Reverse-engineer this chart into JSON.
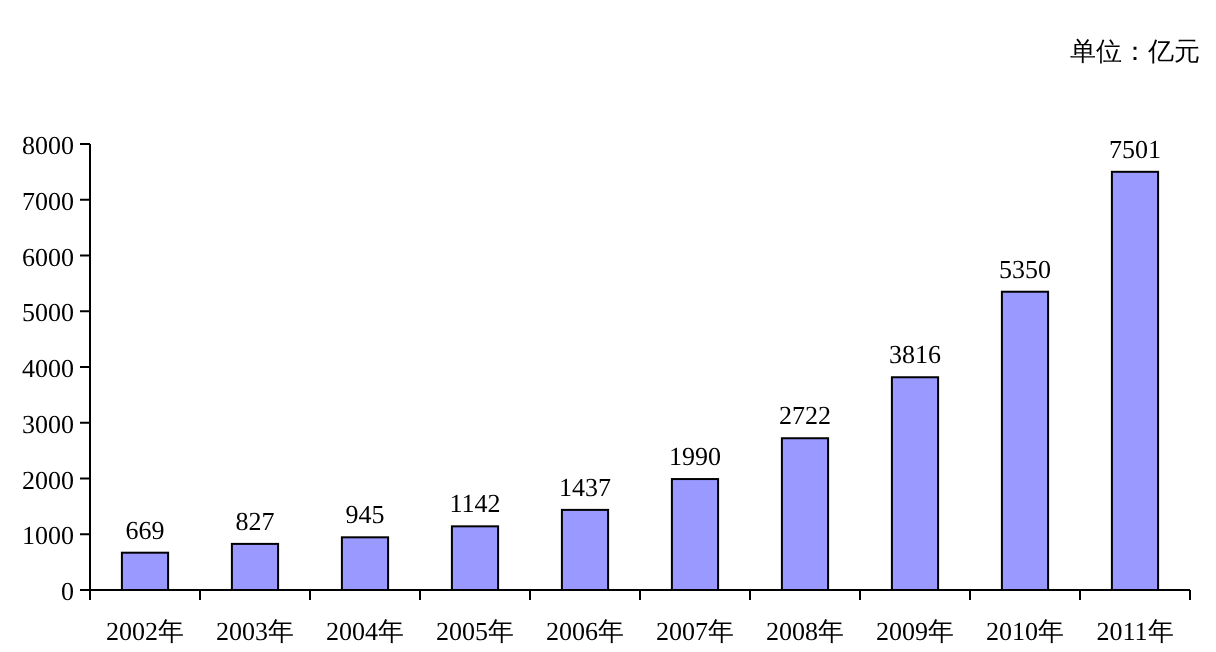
{
  "chart_data": {
    "type": "bar",
    "ylabel": "单位：亿元",
    "categories": [
      "2002年",
      "2003年",
      "2004年",
      "2005年",
      "2006年",
      "2007年",
      "2008年",
      "2009年",
      "2010年",
      "2011年"
    ],
    "values": [
      669,
      827,
      945,
      1142,
      1437,
      1990,
      2722,
      3816,
      5350,
      7501
    ],
    "color": "#9999ff",
    "ylim": [
      0,
      8000
    ],
    "yticks": [
      0,
      1000,
      2000,
      3000,
      4000,
      5000,
      6000,
      7000,
      8000
    ],
    "data_labels": true
  }
}
